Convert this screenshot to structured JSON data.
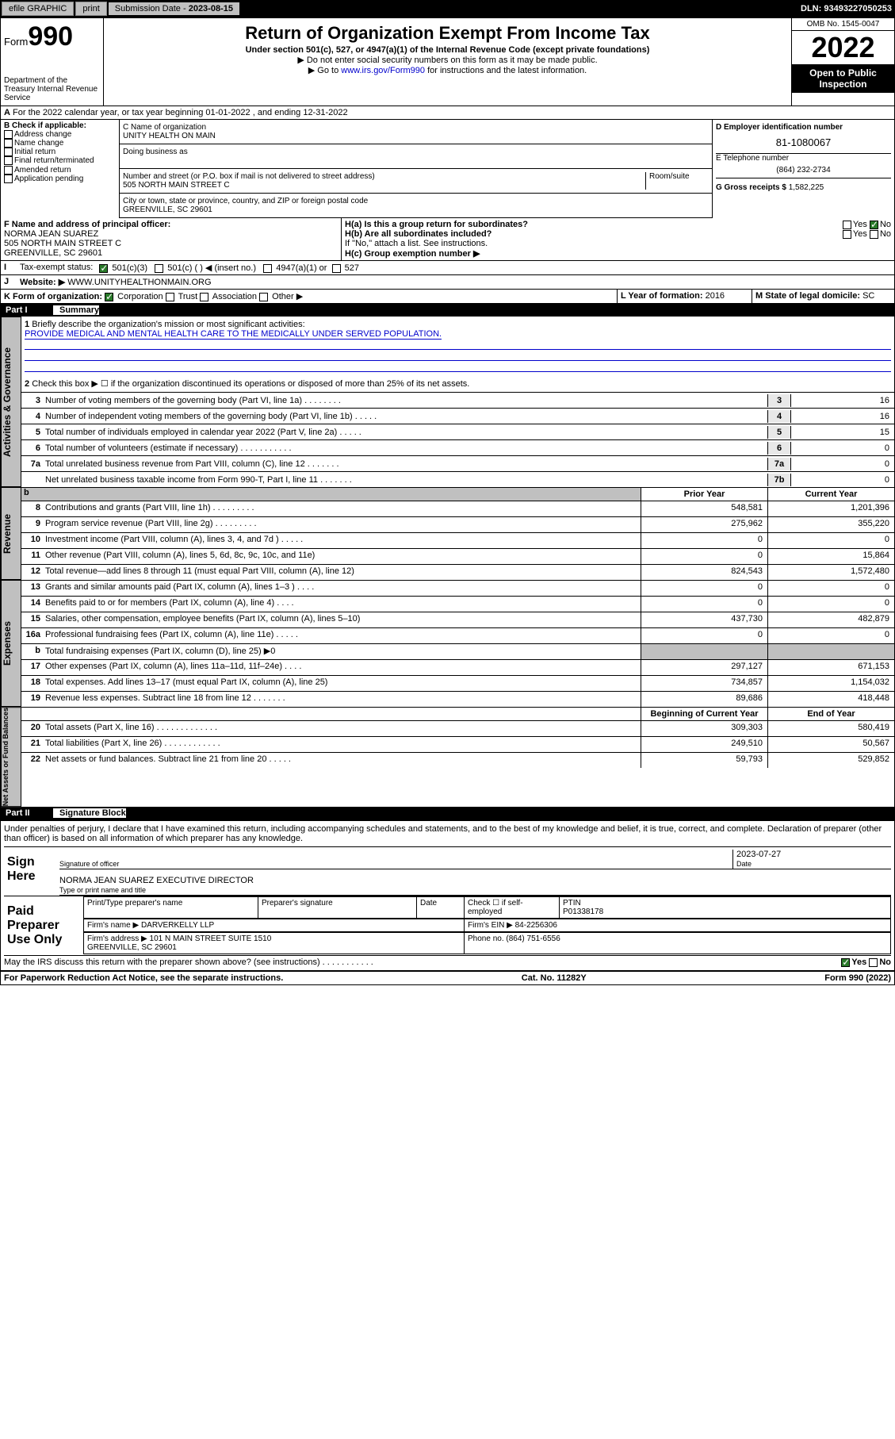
{
  "topbar": {
    "efile": "efile GRAPHIC",
    "print": "print",
    "subdate_label": "Submission Date - ",
    "subdate": "2023-08-15",
    "dln": "DLN: 93493227050253"
  },
  "header": {
    "form_prefix": "Form",
    "form_num": "990",
    "dept": "Department of the Treasury Internal Revenue Service",
    "title": "Return of Organization Exempt From Income Tax",
    "subtitle": "Under section 501(c), 527, or 4947(a)(1) of the Internal Revenue Code (except private foundations)",
    "note1": "▶ Do not enter social security numbers on this form as it may be made public.",
    "note2_pre": "▶ Go to ",
    "note2_link": "www.irs.gov/Form990",
    "note2_post": " for instructions and the latest information.",
    "omb": "OMB No. 1545-0047",
    "year": "2022",
    "open": "Open to Public Inspection"
  },
  "secA": "For the 2022 calendar year, or tax year beginning 01-01-2022    , and ending 12-31-2022",
  "secB": {
    "label": "B Check if applicable:",
    "opts": [
      "Address change",
      "Name change",
      "Initial return",
      "Final return/terminated",
      "Amended return",
      "Application pending"
    ]
  },
  "secC": {
    "name_label": "C Name of organization",
    "name": "UNITY HEALTH ON MAIN",
    "dba_label": "Doing business as",
    "addr_label": "Number and street (or P.O. box if mail is not delivered to street address)",
    "room_label": "Room/suite",
    "addr": "505 NORTH MAIN STREET C",
    "city_label": "City or town, state or province, country, and ZIP or foreign postal code",
    "city": "GREENVILLE, SC  29601"
  },
  "secD": {
    "label": "D Employer identification number",
    "ein": "81-1080067"
  },
  "secE": {
    "label": "E Telephone number",
    "phone": "(864) 232-2734"
  },
  "secG": {
    "label": "G Gross receipts $",
    "val": "1,582,225"
  },
  "secF": {
    "label": "F Name and address of principal officer:",
    "name": "NORMA JEAN SUAREZ",
    "addr1": "505 NORTH MAIN STREET C",
    "addr2": "GREENVILLE, SC  29601"
  },
  "secH": {
    "a": "H(a)  Is this a group return for subordinates?",
    "b": "H(b)  Are all subordinates included?",
    "bnote": "If \"No,\" attach a list. See instructions.",
    "c": "H(c)  Group exemption number ▶",
    "yes": "Yes",
    "no": "No"
  },
  "secI": {
    "label": "Tax-exempt status:",
    "o1": "501(c)(3)",
    "o2": "501(c) (  ) ◀ (insert no.)",
    "o3": "4947(a)(1) or",
    "o4": "527"
  },
  "secJ": {
    "label": "Website: ▶ ",
    "val": "WWW.UNITYHEALTHONMAIN.ORG"
  },
  "secK": {
    "label": "K Form of organization:",
    "o1": "Corporation",
    "o2": "Trust",
    "o3": "Association",
    "o4": "Other ▶"
  },
  "secL": {
    "label": "L Year of formation:",
    "val": "2016"
  },
  "secM": {
    "label": "M State of legal domicile:",
    "val": "SC"
  },
  "part1": {
    "label": "Part I",
    "title": "Summary"
  },
  "summary": {
    "l1_label": "Briefly describe the organization's mission or most significant activities:",
    "l1_text": "PROVIDE MEDICAL AND MENTAL HEALTH CARE TO THE MEDICALLY UNDER SERVED POPULATION.",
    "l2": "Check this box ▶ ☐  if the organization discontinued its operations or disposed of more than 25% of its net assets.",
    "lines": [
      {
        "n": "3",
        "d": "Number of voting members of the governing body (Part VI, line 1a)  .   .   .   .   .   .   .   .",
        "b": "3",
        "v": "16"
      },
      {
        "n": "4",
        "d": "Number of independent voting members of the governing body (Part VI, line 1b)  .   .   .   .   .",
        "b": "4",
        "v": "16"
      },
      {
        "n": "5",
        "d": "Total number of individuals employed in calendar year 2022 (Part V, line 2a)  .   .   .   .   .",
        "b": "5",
        "v": "15"
      },
      {
        "n": "6",
        "d": "Total number of volunteers (estimate if necessary)  .   .   .   .   .   .   .   .   .   .   .",
        "b": "6",
        "v": "0"
      },
      {
        "n": "7a",
        "d": "Total unrelated business revenue from Part VIII, column (C), line 12  .   .   .   .   .   .   .",
        "b": "7a",
        "v": "0"
      },
      {
        "n": "",
        "d": "Net unrelated business taxable income from Form 990-T, Part I, line 11  .   .   .   .   .   .   .",
        "b": "7b",
        "v": "0"
      }
    ],
    "prior_hdr": "Prior Year",
    "curr_hdr": "Current Year",
    "revenue": [
      {
        "n": "8",
        "d": "Contributions and grants (Part VIII, line 1h)  .   .   .   .   .   .   .   .   .",
        "p": "548,581",
        "c": "1,201,396"
      },
      {
        "n": "9",
        "d": "Program service revenue (Part VIII, line 2g)  .   .   .   .   .   .   .   .   .",
        "p": "275,962",
        "c": "355,220"
      },
      {
        "n": "10",
        "d": "Investment income (Part VIII, column (A), lines 3, 4, and 7d )  .   .   .   .   .",
        "p": "0",
        "c": "0"
      },
      {
        "n": "11",
        "d": "Other revenue (Part VIII, column (A), lines 5, 6d, 8c, 9c, 10c, and 11e)",
        "p": "0",
        "c": "15,864"
      },
      {
        "n": "12",
        "d": "Total revenue—add lines 8 through 11 (must equal Part VIII, column (A), line 12)",
        "p": "824,543",
        "c": "1,572,480"
      }
    ],
    "expenses": [
      {
        "n": "13",
        "d": "Grants and similar amounts paid (Part IX, column (A), lines 1–3 )  .   .   .   .",
        "p": "0",
        "c": "0"
      },
      {
        "n": "14",
        "d": "Benefits paid to or for members (Part IX, column (A), line 4)  .   .   .   .",
        "p": "0",
        "c": "0"
      },
      {
        "n": "15",
        "d": "Salaries, other compensation, employee benefits (Part IX, column (A), lines 5–10)",
        "p": "437,730",
        "c": "482,879"
      },
      {
        "n": "16a",
        "d": "Professional fundraising fees (Part IX, column (A), line 11e)  .   .   .   .   .",
        "p": "0",
        "c": "0"
      },
      {
        "n": "b",
        "d": "Total fundraising expenses (Part IX, column (D), line 25) ▶0",
        "p": "",
        "c": ""
      },
      {
        "n": "17",
        "d": "Other expenses (Part IX, column (A), lines 11a–11d, 11f–24e)  .   .   .   .",
        "p": "297,127",
        "c": "671,153"
      },
      {
        "n": "18",
        "d": "Total expenses. Add lines 13–17 (must equal Part IX, column (A), line 25)",
        "p": "734,857",
        "c": "1,154,032"
      },
      {
        "n": "19",
        "d": "Revenue less expenses. Subtract line 18 from line 12  .   .   .   .   .   .   .",
        "p": "89,686",
        "c": "418,448"
      }
    ],
    "bcy_hdr": "Beginning of Current Year",
    "eoy_hdr": "End of Year",
    "netassets": [
      {
        "n": "20",
        "d": "Total assets (Part X, line 16)  .   .   .   .   .   .   .   .   .   .   .   .   .",
        "p": "309,303",
        "c": "580,419"
      },
      {
        "n": "21",
        "d": "Total liabilities (Part X, line 26)  .   .   .   .   .   .   .   .   .   .   .   .",
        "p": "249,510",
        "c": "50,567"
      },
      {
        "n": "22",
        "d": "Net assets or fund balances. Subtract line 21 from line 20  .   .   .   .   .",
        "p": "59,793",
        "c": "529,852"
      }
    ]
  },
  "tabs": {
    "gov": "Activities & Governance",
    "rev": "Revenue",
    "exp": "Expenses",
    "net": "Net Assets or Fund Balances"
  },
  "part2": {
    "label": "Part II",
    "title": "Signature Block"
  },
  "sig": {
    "decl": "Under penalties of perjury, I declare that I have examined this return, including accompanying schedules and statements, and to the best of my knowledge and belief, it is true, correct, and complete. Declaration of preparer (other than officer) is based on all information of which preparer has any knowledge.",
    "sign_here": "Sign Here",
    "sig_officer": "Signature of officer",
    "date_label": "Date",
    "date": "2023-07-27",
    "typed": "NORMA JEAN SUAREZ  EXECUTIVE DIRECTOR",
    "typed_label": "Type or print name and title",
    "paid": "Paid Preparer Use Only",
    "prep_name_label": "Print/Type preparer's name",
    "prep_sig_label": "Preparer's signature",
    "check_self": "Check ☐ if self-employed",
    "ptin_label": "PTIN",
    "ptin": "P01338178",
    "firm_name_label": "Firm's name    ▶",
    "firm_name": "DARVERKELLY LLP",
    "firm_ein_label": "Firm's EIN ▶",
    "firm_ein": "84-2256306",
    "firm_addr_label": "Firm's address ▶",
    "firm_addr1": "101 N MAIN STREET SUITE 1510",
    "firm_addr2": "GREENVILLE, SC  29601",
    "firm_phone_label": "Phone no.",
    "firm_phone": "(864) 751-6556",
    "discuss": "May the IRS discuss this return with the preparer shown above? (see instructions)   .   .   .   .   .   .   .   .   .   .   .",
    "yes": "Yes",
    "no": "No"
  },
  "footer": {
    "left": "For Paperwork Reduction Act Notice, see the separate instructions.",
    "mid": "Cat. No. 11282Y",
    "right": "Form 990 (2022)"
  }
}
